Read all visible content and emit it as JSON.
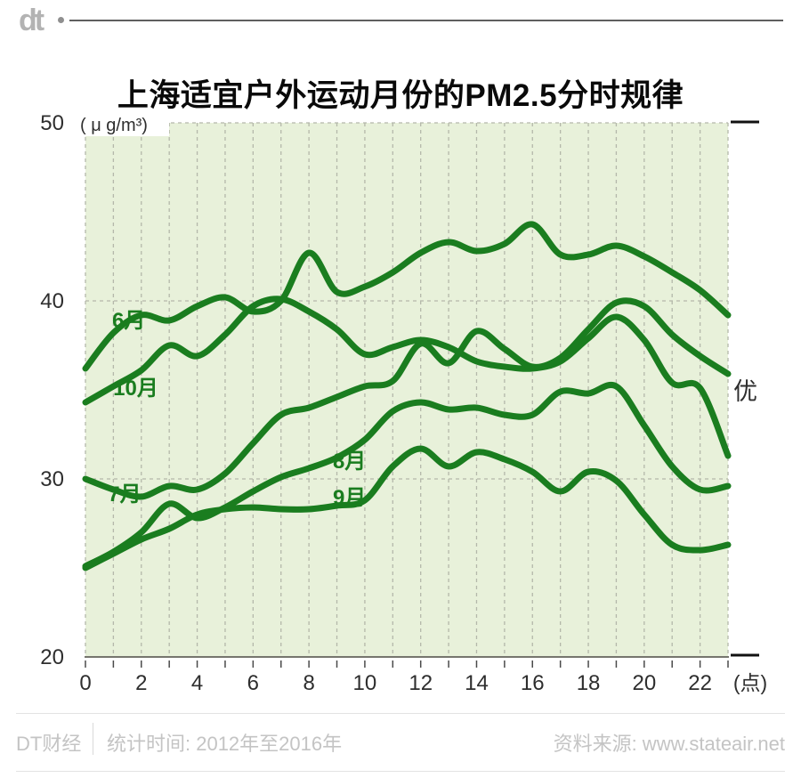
{
  "brand": {
    "logo_text": "dt",
    "footer_left": "DT财经",
    "footer_stat": "统计时间: 2012年至2016年",
    "footer_source": "资料来源: www.stateair.net"
  },
  "title": "上海适宜户外运动月份的PM2.5分时规律",
  "chart_data": {
    "type": "line",
    "title": "上海适宜户外运动月份的PM2.5分时规律",
    "unit_label": "( μ g/m³)",
    "x_axis_suffix": "(点)",
    "right_annotation": "优",
    "x": [
      0,
      1,
      2,
      3,
      4,
      5,
      6,
      7,
      8,
      9,
      10,
      11,
      12,
      13,
      14,
      15,
      16,
      17,
      18,
      19,
      20,
      21,
      22,
      23
    ],
    "x_tick_labels": [
      "0",
      "2",
      "4",
      "6",
      "8",
      "10",
      "12",
      "14",
      "16",
      "18",
      "20",
      "22"
    ],
    "x_label_every": 2,
    "xlim": [
      0,
      23
    ],
    "ylim": [
      20,
      50
    ],
    "y_ticks": [
      20,
      30,
      40,
      50
    ],
    "grid": true,
    "legend": "inline-labels",
    "series": [
      {
        "name": "6月",
        "values": [
          36.2,
          38.2,
          39.2,
          38.9,
          39.7,
          40.2,
          39.4,
          40.0,
          42.7,
          40.5,
          40.8,
          41.6,
          42.7,
          43.3,
          42.8,
          43.2,
          44.3,
          42.6,
          42.6,
          43.1,
          42.5,
          41.6,
          40.6,
          39.2
        ],
        "label_pos": {
          "x": 1.55,
          "y": 38.9
        }
      },
      {
        "name": "10月",
        "values": [
          34.3,
          35.2,
          36.1,
          37.5,
          36.9,
          38.1,
          39.7,
          40.1,
          39.4,
          38.4,
          37.0,
          37.4,
          37.8,
          37.4,
          36.6,
          36.3,
          36.2,
          36.6,
          37.9,
          39.1,
          37.8,
          35.4,
          35.1,
          31.3
        ],
        "label_pos": {
          "x": 1.8,
          "y": 35.1
        }
      },
      {
        "name": "7月",
        "values": [
          30.0,
          29.4,
          29.0,
          29.6,
          29.4,
          30.3,
          32.0,
          33.6,
          34.0,
          34.6,
          35.2,
          35.5,
          37.6,
          36.5,
          38.3,
          37.3,
          36.3,
          36.8,
          38.4,
          39.9,
          39.7,
          38.1,
          36.9,
          35.9
        ],
        "label_pos": {
          "x": 1.4,
          "y": 29.15
        }
      },
      {
        "name": "8月",
        "values": [
          25.1,
          25.9,
          27.0,
          28.6,
          27.8,
          28.4,
          29.3,
          30.1,
          30.6,
          31.2,
          32.2,
          33.8,
          34.3,
          33.9,
          34.0,
          33.6,
          33.6,
          34.9,
          34.8,
          35.2,
          33.0,
          30.7,
          29.4,
          29.6
        ],
        "label_pos": {
          "x": 9.45,
          "y": 31.0
        }
      },
      {
        "name": "9月",
        "values": [
          25.0,
          25.8,
          26.6,
          27.2,
          28.0,
          28.3,
          28.4,
          28.3,
          28.3,
          28.5,
          28.8,
          30.7,
          31.7,
          30.7,
          31.5,
          31.1,
          30.4,
          29.3,
          30.4,
          29.9,
          28.0,
          26.3,
          26.0,
          26.3
        ],
        "label_pos": {
          "x": 9.45,
          "y": 28.95
        }
      }
    ],
    "colors": {
      "line": "#1a7d1f",
      "plot_bg": "#e8f1da",
      "grid": "#b4b8aa",
      "axis": "#76766e",
      "tick": "#4a4a4a",
      "text": "#2e2e2e",
      "edge_mark": "#111111"
    }
  }
}
